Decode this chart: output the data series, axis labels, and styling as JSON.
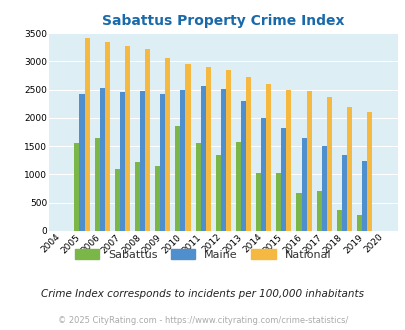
{
  "title": "Sabattus Property Crime Index",
  "years": [
    2004,
    2005,
    2006,
    2007,
    2008,
    2009,
    2010,
    2011,
    2012,
    2013,
    2014,
    2015,
    2016,
    2017,
    2018,
    2019,
    2020
  ],
  "sabattus": [
    0,
    1550,
    1640,
    1100,
    1220,
    1150,
    1850,
    1550,
    1350,
    1580,
    1030,
    1030,
    670,
    700,
    380,
    280,
    0
  ],
  "maine": [
    0,
    2430,
    2530,
    2460,
    2480,
    2430,
    2490,
    2560,
    2510,
    2300,
    2000,
    1820,
    1640,
    1500,
    1350,
    1240,
    0
  ],
  "national": [
    0,
    3420,
    3340,
    3270,
    3220,
    3050,
    2950,
    2900,
    2850,
    2730,
    2600,
    2500,
    2470,
    2370,
    2200,
    2110,
    0
  ],
  "sabattus_color": "#7ab648",
  "maine_color": "#4f8fcd",
  "national_color": "#f5b942",
  "bg_color": "#ddeef5",
  "ylim": [
    0,
    3500
  ],
  "yticks": [
    0,
    500,
    1000,
    1500,
    2000,
    2500,
    3000,
    3500
  ],
  "subtitle": "Crime Index corresponds to incidents per 100,000 inhabitants",
  "footer": "© 2025 CityRating.com - https://www.cityrating.com/crime-statistics/",
  "title_color": "#1a6aab",
  "subtitle_color": "#222222",
  "footer_color": "#aaaaaa",
  "bar_width": 0.25
}
